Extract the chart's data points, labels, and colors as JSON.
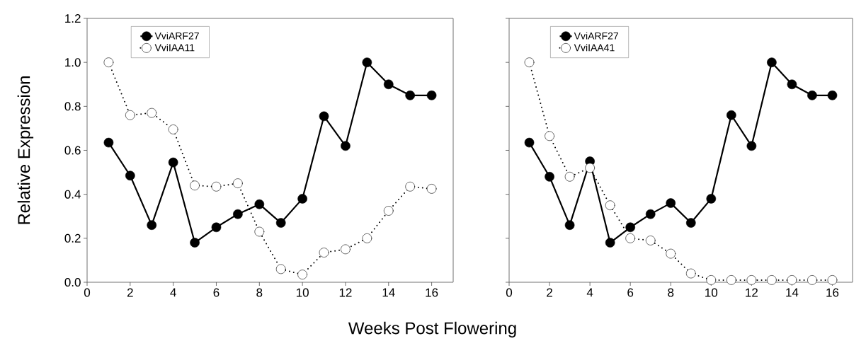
{
  "chart_data": [
    {
      "type": "line",
      "xlabel": "Weeks Post Flowering",
      "ylabel": "Relative Expression",
      "x": [
        1,
        2,
        3,
        4,
        5,
        6,
        7,
        8,
        9,
        10,
        11,
        12,
        13,
        14,
        15,
        16
      ],
      "xlim": [
        0,
        17
      ],
      "xticks": [
        0,
        2,
        4,
        6,
        8,
        10,
        12,
        14,
        16
      ],
      "ylim": [
        0,
        1.2
      ],
      "yticks": [
        {
          "value": 0,
          "label": "0.0"
        },
        0.2,
        0.4,
        0.6,
        0.8,
        {
          "value": 1,
          "label": "1.0"
        },
        1.2
      ],
      "legend": "top left",
      "marker": "circle",
      "series": [
        {
          "name": "VviARF27",
          "color": "#000000",
          "line_style": "solid",
          "values": [
            0.635,
            0.485,
            0.26,
            0.545,
            0.18,
            0.25,
            0.31,
            0.355,
            0.27,
            0.38,
            0.755,
            0.62,
            1.0,
            0.9,
            0.85,
            0.85
          ]
        },
        {
          "name": "VviIAA11",
          "color": "#000000",
          "line_style": "dotted",
          "values": [
            1.0,
            0.76,
            0.77,
            0.695,
            0.44,
            0.435,
            0.45,
            0.23,
            0.06,
            0.035,
            0.135,
            0.15,
            0.2,
            0.325,
            0.435,
            0.425
          ]
        }
      ]
    },
    {
      "type": "line",
      "x": [
        1,
        2,
        3,
        4,
        5,
        6,
        7,
        8,
        9,
        10,
        11,
        12,
        13,
        14,
        15,
        16
      ],
      "xlim": [
        0,
        17
      ],
      "xticks": [
        0,
        2,
        4,
        6,
        8,
        10,
        12,
        14,
        16
      ],
      "ylim": [
        0,
        1.2
      ],
      "yticks": [
        0.0,
        0.2,
        0.4,
        0.6,
        0.8,
        1.0,
        1.2
      ],
      "tick_labels": "x",
      "legend": "top left",
      "marker": "circle",
      "series": [
        {
          "name": "VviARF27",
          "color": "#000000",
          "line_style": "solid",
          "values": [
            0.635,
            0.48,
            0.26,
            0.55,
            0.18,
            0.25,
            0.31,
            0.36,
            0.27,
            0.38,
            0.76,
            0.62,
            1.0,
            0.9,
            0.85,
            0.85
          ]
        },
        {
          "name": "VviIAA41",
          "color": "#000000",
          "line_style": "dotted",
          "values": [
            1.0,
            0.665,
            0.48,
            0.52,
            0.35,
            0.2,
            0.19,
            0.13,
            0.04,
            0.01,
            0.01,
            0.01,
            0.01,
            0.01,
            0.01,
            0.01
          ]
        }
      ]
    }
  ]
}
